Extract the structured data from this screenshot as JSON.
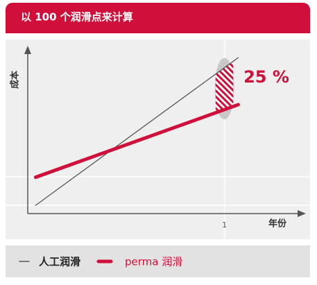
{
  "chart_data": {
    "type": "line",
    "title": "以 100 个润滑点来计算",
    "x_label": "年份",
    "y_label": "成本",
    "annotation": "25 %",
    "x": [
      0.04,
      1.07
    ],
    "series": [
      {
        "name": "人工润滑",
        "color": "#555555",
        "values": [
          0.05,
          0.945
        ]
      },
      {
        "name": "perma 润滑",
        "color": "#d0103a",
        "values": [
          0.22,
          0.66
        ]
      }
    ],
    "xlim": [
      0,
      1.4
    ],
    "ylim": [
      0,
      1
    ],
    "xticks": [
      1
    ],
    "grid": true
  }
}
